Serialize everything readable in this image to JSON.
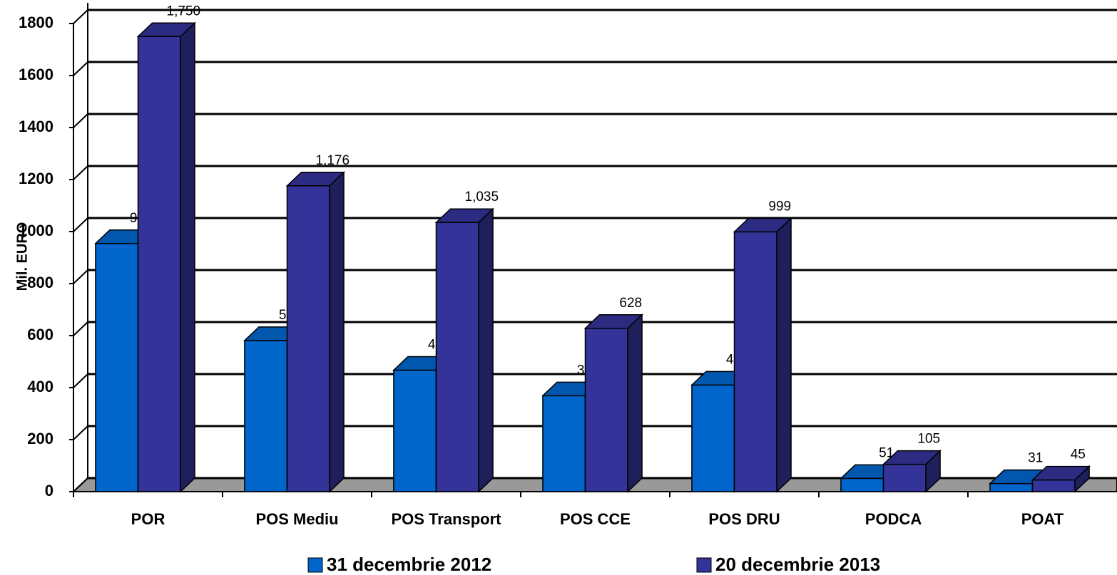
{
  "chart_data": {
    "type": "bar3d",
    "y_label": "Mil. EURO",
    "categories": [
      "POR",
      "POS Mediu",
      "POS Transport",
      "POS CCE",
      "POS DRU",
      "PODCA",
      "POAT"
    ],
    "series": [
      {
        "name": "31 decembrie 2012",
        "color": "#0066cc",
        "values": [
          954,
          581,
          467,
          369,
          410,
          51,
          31
        ]
      },
      {
        "name": "20 decembrie 2013",
        "color": "#333399",
        "values": [
          1750,
          1176,
          1035,
          628,
          999,
          105,
          45
        ],
        "value_labels": [
          "1,750",
          "1,176",
          "1,035",
          "628",
          "999",
          "105",
          "45"
        ]
      }
    ],
    "ylim": [
      0,
      1800
    ],
    "yticks": [
      0,
      200,
      400,
      600,
      800,
      1000,
      1200,
      1400,
      1600,
      1800
    ],
    "grid": true,
    "legend": "bottom"
  }
}
